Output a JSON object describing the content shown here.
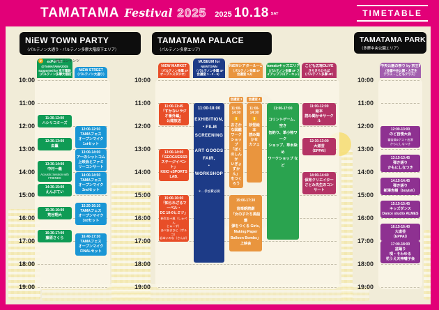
{
  "header": {
    "logo_text": "TAMATAMA",
    "logo_festival": "Festival",
    "logo_year": "2025",
    "date_year": "2025",
    "date_day": "10.18",
    "date_dow": "SAT",
    "timetable_label": "TIMETABLE"
  },
  "legend": {
    "icon": "¥",
    "text": "・・・有料コンテンツ"
  },
  "hours": [
    "10:00",
    "11:00",
    "12:00",
    "13:00",
    "14:00",
    "15:00",
    "16:00",
    "17:00",
    "18:00",
    "19:00"
  ],
  "sections": [
    {
      "id": "town",
      "title": "NiEW TOWN PARTY",
      "subtitle": "（パルテノン大通り・パルテノン多摩大階段下エリア）",
      "columns": [
        {
          "id": "expop",
          "color": "#0f9b55",
          "header_lines": [
            "exPoP!!!!",
            "@TAMATAMA2025",
            "supported by 京王電鉄",
            "（パルテノン多摩大階段下）"
          ],
          "events": [
            {
              "time": "11:30-12:00",
              "start": 11.5,
              "end": 12,
              "title": "ハシリコミーズ"
            },
            {
              "time": "12:30-13:00",
              "start": 12.5,
              "end": 13,
              "title": "由薫"
            },
            {
              "time": "13:30-14:00",
              "start": 13.5,
              "end": 14,
              "title": "中村一義",
              "sub": "Acoustic Session with\nFRIENDS"
            },
            {
              "time": "14:30-15:00",
              "start": 14.5,
              "end": 15,
              "title": "えんぷてい"
            },
            {
              "time": "15:30-16:00",
              "start": 15.5,
              "end": 16,
              "title": "荒谷翔大"
            },
            {
              "time": "16:30-17:00",
              "start": 16.5,
              "end": 17,
              "title": "藤原さくら"
            }
          ]
        },
        {
          "id": "street",
          "color": "#1a96d5",
          "header_lines": [
            "NiEW STREET",
            "（パルテノン大通り）"
          ],
          "events": [
            {
              "time": "12:00-12:50",
              "start": 12,
              "end": 12.83,
              "title": "TAMAフェス\nオープンマイク\n1stセット"
            },
            {
              "time": "13:00-14:00",
              "start": 13,
              "end": 14,
              "title": "アーのシットコム\n上映会とファミ\nリーコンサート"
            },
            {
              "time": "14:00-14:50",
              "start": 14,
              "end": 14.83,
              "title": "TAMAフェス\nオープンマイク\n2ndセット"
            },
            {
              "time": "15:20-16:10",
              "start": 15.33,
              "end": 16.17,
              "title": "TAMAフェス\nオープンマイク\n3rdセット"
            },
            {
              "time": "16:40-17:30",
              "start": 16.67,
              "end": 17.5,
              "title": "TAMAフェス\nオープンマイク\nFINALセット"
            }
          ]
        }
      ]
    },
    {
      "id": "palace",
      "title": "TAMATAMA PALACE",
      "subtitle": "（パルテノン多摩エリア）",
      "columns": [
        {
          "id": "market",
          "color": "#e84e28",
          "header_lines": [
            "NiEW MARKET",
            "（パルテノン多摩 2F",
            "オープンスタジオ）"
          ],
          "events": [
            {
              "time": "11:00-11:45",
              "start": 11,
              "end": 11.75,
              "title": "「すかないラジオ番外編」\n公開放送"
            },
            {
              "time": "13:00-14:00",
              "start": 13,
              "end": 14,
              "title": "「GEOGUESSR\nステージイベント」\nKEIO eSPORTS LAB."
            },
            {
              "time": "15:00-16:00",
              "start": 15,
              "end": 16,
              "title": "「知られざるマーベル・\nDC 10-0ヒミツ」",
              "sub": "新生五十嵐（しゅぺん\nじゅーず）\nあべあきひと（ポルコ）\n岩本いのな（さんぽ）"
            }
          ]
        },
        {
          "id": "museum",
          "color": "#1d3b87",
          "header_lines": [
            "MUSEUM for",
            "NEWTOWN",
            "（パルテノン多摩 4F",
            "会議室 1・2・5）"
          ],
          "events": [
            {
              "time": "11:00-18:00",
              "start": 11,
              "end": 18,
              "title": "EXHIBITION,\n・FILM\nSCREENING\n\nART GOODS\nFAIR,\n・WORKSHOP",
              "sub": "＊…参加費必要"
            }
          ]
        },
        {
          "id": "theater",
          "color": "#e9953e",
          "header_lines": [
            "NiEWシアタールーム",
            "（パルテノン多摩 4F",
            "会議室 3,4）"
          ]
        },
        {
          "id": "room3",
          "color": "#e9953e",
          "tag": "会議室 3",
          "events": [
            {
              "time": "11:00-\n14:30",
              "start": 11,
              "end": 14.5,
              "paid": true,
              "title": "おさかな図鑑\nワークショップ\n「ぼくのしんか\nいぎょずかん」\nをつくろう"
            }
          ]
        },
        {
          "id": "room4",
          "color": "#e9953e",
          "tag": "会議室 4",
          "events": [
            {
              "time": "11:00-\n14:30",
              "start": 11,
              "end": 14.5,
              "paid": true,
              "title": "妖怪絵本\n読み聞かせ\nカフェ"
            }
          ]
        },
        {
          "id": "theaterfull",
          "color": "#e9953e",
          "events": [
            {
              "time": "15:00-17:30",
              "start": 15,
              "end": 17.5,
              "title": "音楽朗読劇\n「女の子たち風船爆\n弾をつくる Girls,\nMaking Paper\nBalloon Bombs」\n上映会"
            }
          ]
        },
        {
          "id": "tomato",
          "color": "#2aa34f",
          "header_lines": [
            "tomatoキッズエリア",
            "（パルテノン多摩 4F プレ",
            "イアップフロア・キッチン前）"
          ],
          "events": [
            {
              "time": "11:00-17:00",
              "start": 11,
              "end": 17,
              "title": "コリントゲーム、空き\n缶釣り、革小物ワーク\nショップ、草木染め\nワークショップ など"
            }
          ]
        },
        {
          "id": "olive",
          "color": "#b43365",
          "header_lines": [
            "こども広場OLIVE",
            "きらきらひろば",
            "（パルテノン多摩 4F）"
          ],
          "events": [
            {
              "time": "11:00-12:00",
              "start": 11,
              "end": 12,
              "title": "絵本\n読み聞かせサークル"
            },
            {
              "time": "12:30-13:00",
              "start": 12.5,
              "end": 13,
              "title": "大道芸\n（EPPAI）"
            },
            {
              "time": "14:00-14:40",
              "start": 14,
              "end": 14.67,
              "title": "保育クリエイター\nさとみ先生のコンサート"
            }
          ]
        }
      ]
    },
    {
      "id": "park",
      "title": "TAMATAMA PARK",
      "subtitle": "（多摩中央公園エリア）",
      "columns": [
        {
          "id": "parkmain",
          "color": "#8e3191",
          "header_color": "#a25fae",
          "header_lines": [
            "中央公園の祭り by 京王電鉄",
            "（多摩中央公園・大芝生",
            "テラス・こどもテラス）"
          ],
          "events": [
            {
              "time": "12:00-13:00",
              "start": 12,
              "end": 13,
              "title": "のど自慢大会",
              "sub": "審査員&ゲスト出演\nかもにしなつき"
            },
            {
              "time": "13:15-13:45",
              "start": 13.25,
              "end": 13.75,
              "title": "弾き語り\nかもにしなつき"
            },
            {
              "time": "14:15-14:45",
              "start": 14.25,
              "end": 14.75,
              "title": "弾き語り\n新澤吉樹（boyish）"
            },
            {
              "time": "15:15-15:45",
              "start": 15.25,
              "end": 15.75,
              "title": "キッズダンス\nDance studio ALMES"
            },
            {
              "time": "16:15-16:40",
              "start": 16.25,
              "end": 16.67,
              "title": "大道芸\n（EPPAI）"
            },
            {
              "time": "17:00-18:00",
              "start": 17,
              "end": 18,
              "title": "盆踊り\n唄・そわゆる\n花うえ天神囃子会"
            }
          ]
        }
      ]
    }
  ]
}
